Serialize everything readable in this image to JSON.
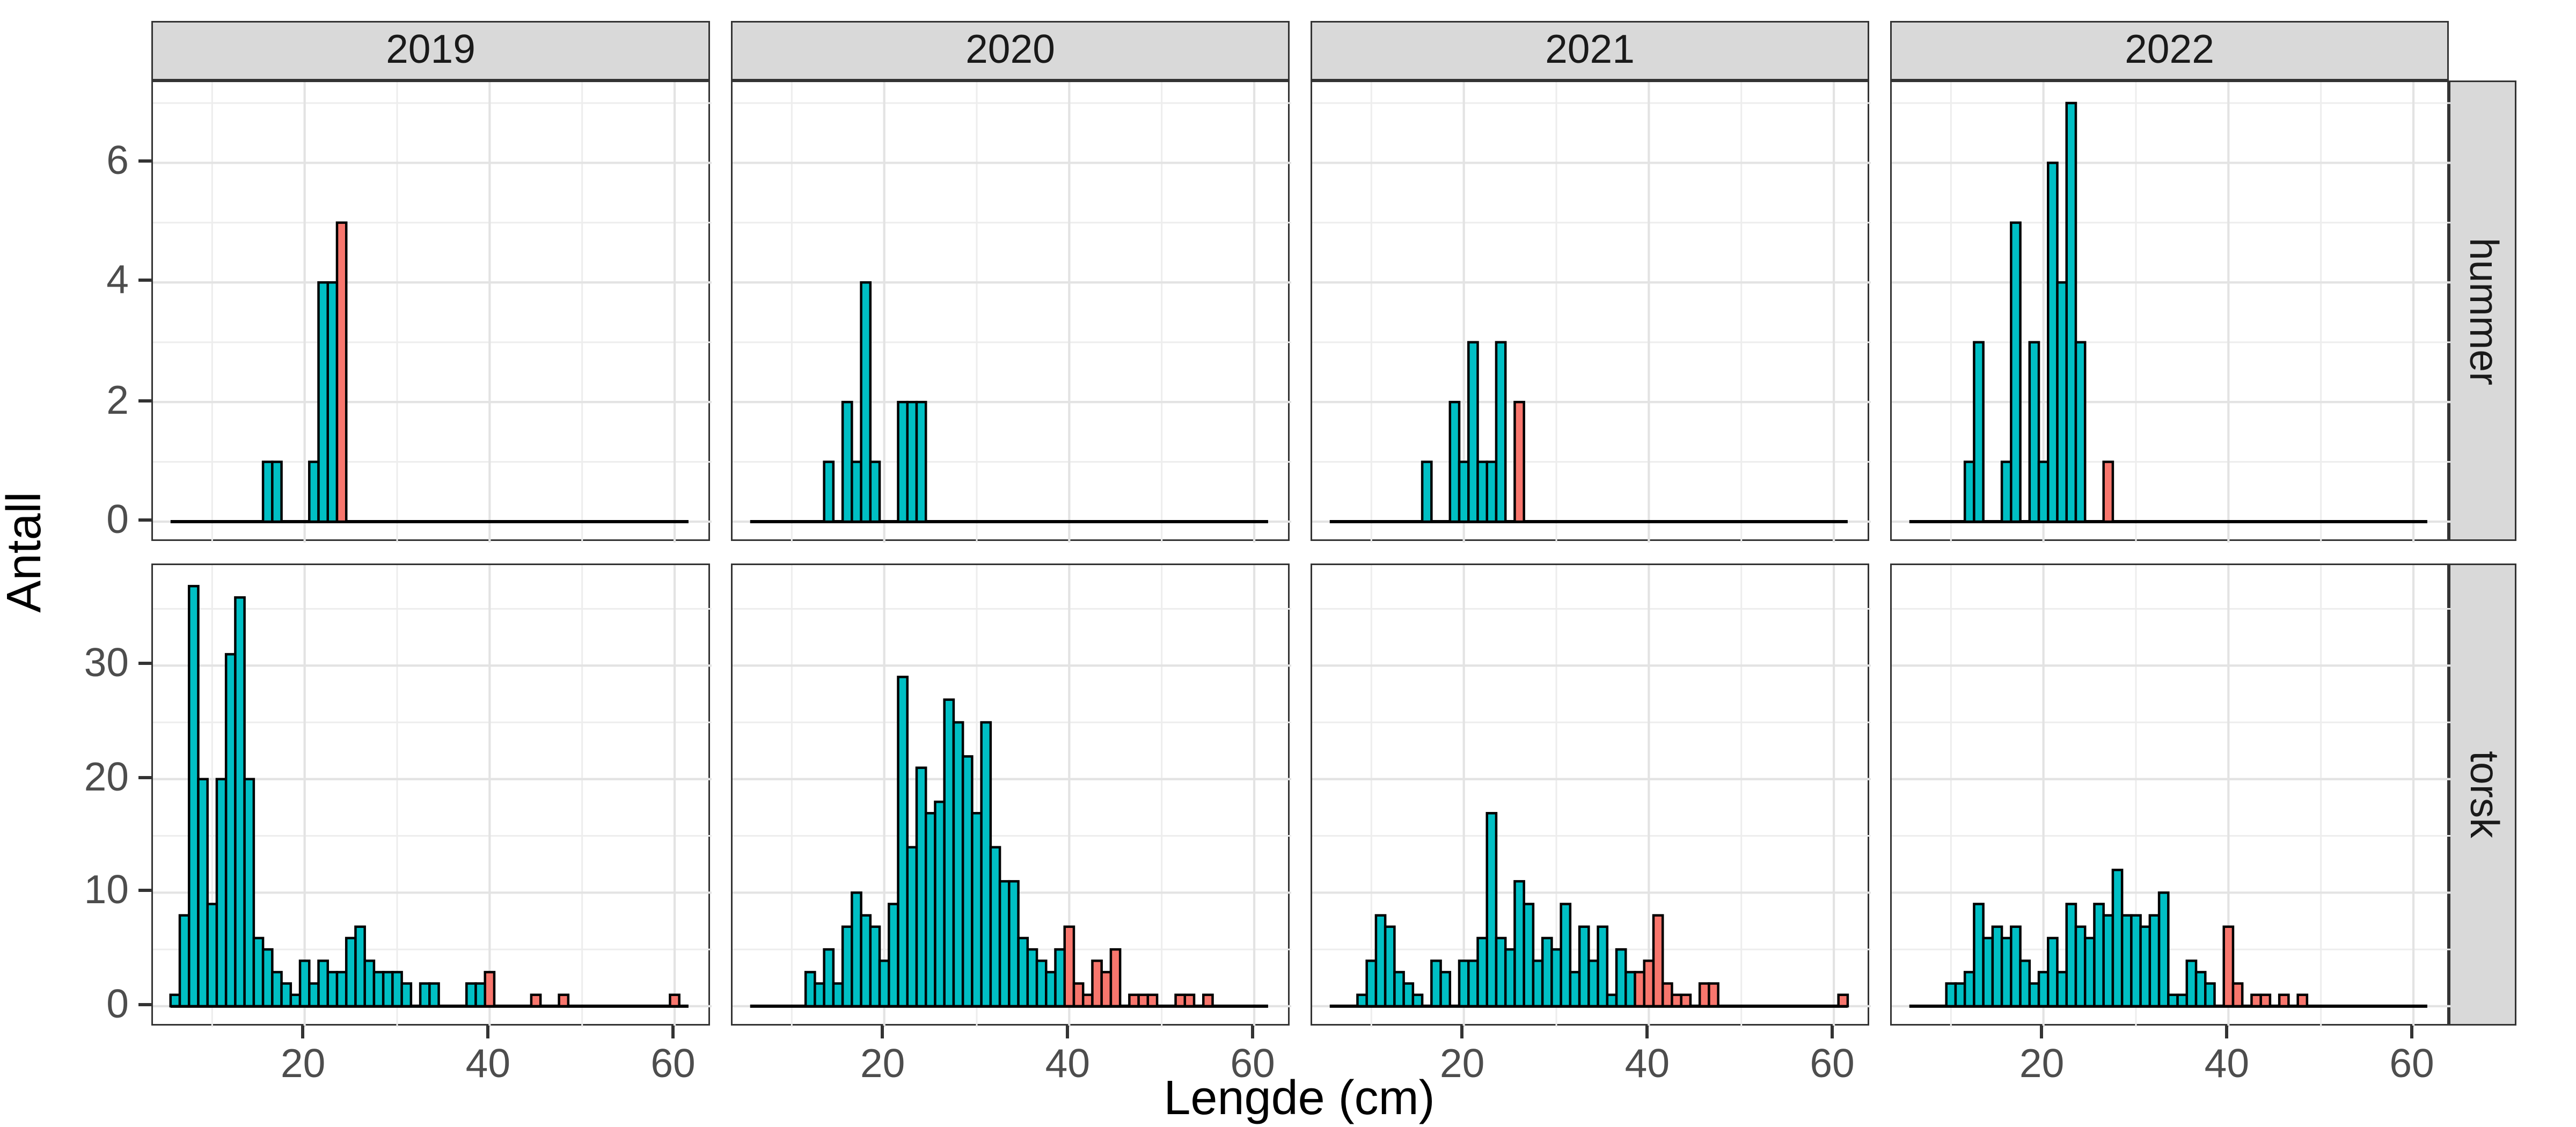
{
  "chart_data": {
    "type": "bar",
    "subtype": "faceted-histogram",
    "title": "",
    "xlabel": "Lengde (cm)",
    "ylabel": "Antall",
    "legend_position": "none",
    "grid": "on",
    "bin_width_cm": 1,
    "facet_cols": [
      "2019",
      "2020",
      "2021",
      "2022"
    ],
    "facet_rows": [
      "hummer",
      "torsk"
    ],
    "x_range": [
      3.6,
      64.0
    ],
    "x_ticks": [
      20,
      40,
      60
    ],
    "x_minor_gridlines": [
      10,
      30,
      50
    ],
    "baseline_extent_cm": [
      5.5,
      61.5
    ],
    "rows": {
      "hummer": {
        "y_ticks": [
          0,
          2,
          4,
          6
        ],
        "y_minor_gridlines": [
          1,
          3,
          5,
          7
        ],
        "y_min": -0.35,
        "y_max": 7.35
      },
      "torsk": {
        "y_ticks": [
          0,
          10,
          20,
          30
        ],
        "y_minor_gridlines": [
          5,
          15,
          25,
          35
        ],
        "y_min": -1.85,
        "y_max": 38.85
      }
    },
    "series_colors": {
      "teal": "#00BFC4",
      "salmon": "#F8766D",
      "bar_outline": "#000000"
    },
    "panels": [
      {
        "row": "hummer",
        "col": "2019",
        "teal": [
          [
            16,
            1
          ],
          [
            17,
            1
          ],
          [
            21,
            1
          ],
          [
            22,
            4
          ],
          [
            23,
            4
          ]
        ],
        "salmon": [
          [
            24,
            5
          ]
        ]
      },
      {
        "row": "hummer",
        "col": "2020",
        "teal": [
          [
            14,
            1
          ],
          [
            16,
            2
          ],
          [
            17,
            1
          ],
          [
            18,
            4
          ],
          [
            19,
            1
          ],
          [
            22,
            2
          ],
          [
            23,
            2
          ],
          [
            24,
            2
          ]
        ],
        "salmon": []
      },
      {
        "row": "hummer",
        "col": "2021",
        "teal": [
          [
            16,
            1
          ],
          [
            19,
            2
          ],
          [
            20,
            1
          ],
          [
            21,
            3
          ],
          [
            22,
            1
          ],
          [
            23,
            1
          ],
          [
            24,
            3
          ]
        ],
        "salmon": [
          [
            26,
            2
          ]
        ]
      },
      {
        "row": "hummer",
        "col": "2022",
        "teal": [
          [
            12,
            1
          ],
          [
            13,
            3
          ],
          [
            16,
            1
          ],
          [
            17,
            5
          ],
          [
            19,
            3
          ],
          [
            20,
            1
          ],
          [
            21,
            6
          ],
          [
            22,
            4
          ],
          [
            23,
            7
          ],
          [
            24,
            3
          ]
        ],
        "salmon": [
          [
            27,
            1
          ]
        ]
      },
      {
        "row": "torsk",
        "col": "2019",
        "teal": [
          [
            6,
            1
          ],
          [
            7,
            8
          ],
          [
            8,
            37
          ],
          [
            9,
            20
          ],
          [
            10,
            9
          ],
          [
            11,
            20
          ],
          [
            12,
            31
          ],
          [
            13,
            36
          ],
          [
            14,
            20
          ],
          [
            15,
            6
          ],
          [
            16,
            5
          ],
          [
            17,
            3
          ],
          [
            18,
            2
          ],
          [
            19,
            1
          ],
          [
            20,
            4
          ],
          [
            21,
            2
          ],
          [
            22,
            4
          ],
          [
            23,
            3
          ],
          [
            24,
            3
          ],
          [
            25,
            6
          ],
          [
            26,
            7
          ],
          [
            27,
            4
          ],
          [
            28,
            3
          ],
          [
            29,
            3
          ],
          [
            30,
            3
          ],
          [
            31,
            2
          ],
          [
            33,
            2
          ],
          [
            34,
            2
          ],
          [
            38,
            2
          ],
          [
            39,
            2
          ]
        ],
        "salmon": [
          [
            40,
            3
          ],
          [
            45,
            1
          ],
          [
            48,
            1
          ],
          [
            60,
            1
          ]
        ]
      },
      {
        "row": "torsk",
        "col": "2020",
        "teal": [
          [
            12,
            3
          ],
          [
            13,
            2
          ],
          [
            14,
            5
          ],
          [
            15,
            2
          ],
          [
            16,
            7
          ],
          [
            17,
            10
          ],
          [
            18,
            8
          ],
          [
            19,
            7
          ],
          [
            20,
            4
          ],
          [
            21,
            9
          ],
          [
            22,
            29
          ],
          [
            23,
            14
          ],
          [
            24,
            21
          ],
          [
            25,
            17
          ],
          [
            26,
            18
          ],
          [
            27,
            27
          ],
          [
            28,
            25
          ],
          [
            29,
            22
          ],
          [
            30,
            17
          ],
          [
            31,
            25
          ],
          [
            32,
            14
          ],
          [
            33,
            11
          ],
          [
            34,
            11
          ],
          [
            35,
            6
          ],
          [
            36,
            5
          ],
          [
            37,
            4
          ],
          [
            38,
            3
          ],
          [
            39,
            5
          ]
        ],
        "salmon": [
          [
            40,
            7
          ],
          [
            41,
            2
          ],
          [
            42,
            1
          ],
          [
            43,
            4
          ],
          [
            44,
            3
          ],
          [
            45,
            5
          ],
          [
            47,
            1
          ],
          [
            48,
            1
          ],
          [
            49,
            1
          ],
          [
            52,
            1
          ],
          [
            53,
            1
          ],
          [
            55,
            1
          ]
        ]
      },
      {
        "row": "torsk",
        "col": "2021",
        "teal": [
          [
            9,
            1
          ],
          [
            10,
            4
          ],
          [
            11,
            8
          ],
          [
            12,
            7
          ],
          [
            13,
            3
          ],
          [
            14,
            2
          ],
          [
            15,
            1
          ],
          [
            17,
            4
          ],
          [
            18,
            3
          ],
          [
            20,
            4
          ],
          [
            21,
            4
          ],
          [
            22,
            6
          ],
          [
            23,
            17
          ],
          [
            24,
            6
          ],
          [
            25,
            5
          ],
          [
            26,
            11
          ],
          [
            27,
            9
          ],
          [
            28,
            4
          ],
          [
            29,
            6
          ],
          [
            30,
            5
          ],
          [
            31,
            9
          ],
          [
            32,
            3
          ],
          [
            33,
            7
          ],
          [
            34,
            4
          ],
          [
            35,
            7
          ],
          [
            36,
            1
          ],
          [
            37,
            5
          ],
          [
            38,
            3
          ]
        ],
        "salmon": [
          [
            39,
            3
          ],
          [
            40,
            4
          ],
          [
            41,
            8
          ],
          [
            42,
            2
          ],
          [
            43,
            1
          ],
          [
            44,
            1
          ],
          [
            46,
            2
          ],
          [
            47,
            2
          ],
          [
            61,
            1
          ]
        ]
      },
      {
        "row": "torsk",
        "col": "2022",
        "teal": [
          [
            10,
            2
          ],
          [
            11,
            2
          ],
          [
            12,
            3
          ],
          [
            13,
            9
          ],
          [
            14,
            6
          ],
          [
            15,
            7
          ],
          [
            16,
            6
          ],
          [
            17,
            7
          ],
          [
            18,
            4
          ],
          [
            19,
            2
          ],
          [
            20,
            3
          ],
          [
            21,
            6
          ],
          [
            22,
            3
          ],
          [
            23,
            9
          ],
          [
            24,
            7
          ],
          [
            25,
            6
          ],
          [
            26,
            9
          ],
          [
            27,
            8
          ],
          [
            28,
            12
          ],
          [
            29,
            8
          ],
          [
            30,
            8
          ],
          [
            31,
            7
          ],
          [
            32,
            8
          ],
          [
            33,
            10
          ],
          [
            34,
            1
          ],
          [
            35,
            1
          ],
          [
            36,
            4
          ],
          [
            37,
            3
          ],
          [
            38,
            2
          ]
        ],
        "salmon": [
          [
            40,
            7
          ],
          [
            41,
            2
          ],
          [
            43,
            1
          ],
          [
            44,
            1
          ],
          [
            46,
            1
          ],
          [
            48,
            1
          ]
        ]
      }
    ]
  },
  "style": {
    "panel_border": "#333333",
    "strip_bg": "#d9d9d9",
    "grid_major": "#e3e3e3",
    "grid_minor": "#ededed",
    "tick_text": "#4d4d4d",
    "baseline": "#000000"
  }
}
